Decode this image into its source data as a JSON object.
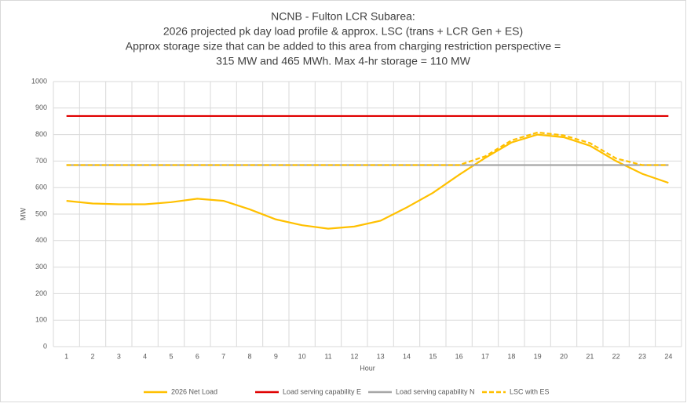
{
  "chart_data": {
    "type": "line",
    "title": [
      "NCNB - Fulton LCR Subarea:",
      "2026 projected pk day load profile & approx. LSC (trans + LCR Gen + ES)",
      "Approx storage size that can be added to this area from charging restriction perspective =",
      "315 MW and 465 MWh. Max 4-hr storage = 110 MW"
    ],
    "x_label": "Hour",
    "y_label": "MW",
    "categories": [
      "1",
      "2",
      "3",
      "4",
      "5",
      "6",
      "7",
      "8",
      "9",
      "10",
      "11",
      "12",
      "13",
      "14",
      "15",
      "16",
      "17",
      "18",
      "19",
      "20",
      "21",
      "22",
      "23",
      "24"
    ],
    "series": [
      {
        "name": "2026 Net Load",
        "color": "#ffc000",
        "style": "solid",
        "values": [
          550,
          540,
          537,
          537,
          545,
          558,
          550,
          518,
          480,
          458,
          445,
          453,
          475,
          525,
          580,
          648,
          712,
          770,
          800,
          790,
          758,
          700,
          652,
          618
        ]
      },
      {
        "name": "Load serving capability E",
        "color": "#e00000",
        "style": "solid",
        "values": [
          870,
          870,
          870,
          870,
          870,
          870,
          870,
          870,
          870,
          870,
          870,
          870,
          870,
          870,
          870,
          870,
          870,
          870,
          870,
          870,
          870,
          870,
          870,
          870
        ]
      },
      {
        "name": "Load serving capability N",
        "color": "#a6a6a6",
        "style": "solid",
        "values": [
          685,
          685,
          685,
          685,
          685,
          685,
          685,
          685,
          685,
          685,
          685,
          685,
          685,
          685,
          685,
          685,
          685,
          685,
          685,
          685,
          685,
          685,
          685,
          685
        ]
      },
      {
        "name": "LSC with ES",
        "color": "#ffc000",
        "style": "dashed",
        "values": [
          685,
          685,
          685,
          685,
          685,
          685,
          685,
          685,
          685,
          685,
          685,
          685,
          685,
          685,
          685,
          685,
          718,
          778,
          808,
          797,
          768,
          710,
          685,
          685
        ]
      }
    ],
    "ylim": [
      0,
      1000
    ],
    "yticks": [
      0,
      100,
      200,
      300,
      400,
      500,
      600,
      700,
      800,
      900,
      1000
    ],
    "grid": true,
    "legend": "bottom"
  }
}
